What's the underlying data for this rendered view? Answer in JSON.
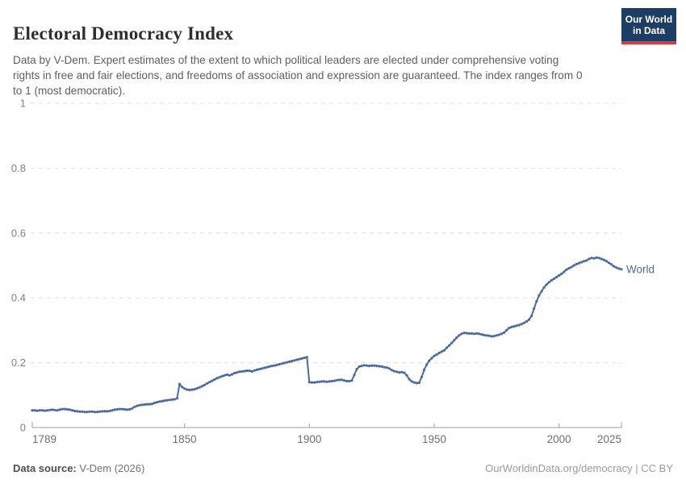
{
  "header": {
    "title": "Electoral Democracy Index",
    "subtitle": "Data by V-Dem. Expert estimates of the extent to which political leaders are elected under comprehensive voting rights in free and fair elections, and freedoms of association and expression are guaranteed. The index ranges from 0 to 1 (most democratic).",
    "logo": {
      "line1": "Our World",
      "line2": "in Data",
      "bg_color": "#1d3d63",
      "accent_color": "#d73c3c"
    }
  },
  "chart_data": {
    "type": "line",
    "title": "Electoral Democracy Index",
    "xlabel": "",
    "ylabel": "",
    "xlim": [
      1789,
      2025
    ],
    "ylim": [
      0,
      1
    ],
    "grid": true,
    "xticks": [
      1789,
      1850,
      1900,
      1950,
      2000,
      2025
    ],
    "xtick_labels": [
      "1789",
      "1850",
      "1900",
      "1950",
      "2000",
      "2025"
    ],
    "yticks": [
      0,
      0.2,
      0.4,
      0.6,
      0.8,
      1
    ],
    "ytick_labels": [
      "0",
      "0.2",
      "0.4",
      "0.6",
      "0.8",
      "1"
    ],
    "legend_position": "end-of-line",
    "series": [
      {
        "name": "World",
        "color": "#4c6a9c",
        "x_start": 1789,
        "x_step": 1,
        "values": [
          0.053,
          0.053,
          0.052,
          0.053,
          0.053,
          0.052,
          0.053,
          0.054,
          0.055,
          0.054,
          0.053,
          0.055,
          0.057,
          0.057,
          0.056,
          0.055,
          0.053,
          0.051,
          0.05,
          0.049,
          0.049,
          0.048,
          0.048,
          0.049,
          0.049,
          0.048,
          0.048,
          0.049,
          0.05,
          0.05,
          0.05,
          0.051,
          0.053,
          0.055,
          0.056,
          0.057,
          0.057,
          0.056,
          0.055,
          0.056,
          0.059,
          0.064,
          0.067,
          0.069,
          0.07,
          0.071,
          0.072,
          0.072,
          0.073,
          0.076,
          0.078,
          0.08,
          0.081,
          0.083,
          0.084,
          0.085,
          0.086,
          0.087,
          0.09,
          0.134,
          0.125,
          0.12,
          0.117,
          0.116,
          0.117,
          0.118,
          0.121,
          0.124,
          0.127,
          0.131,
          0.136,
          0.14,
          0.144,
          0.148,
          0.152,
          0.155,
          0.158,
          0.161,
          0.163,
          0.161,
          0.164,
          0.168,
          0.17,
          0.172,
          0.173,
          0.174,
          0.175,
          0.175,
          0.173,
          0.176,
          0.178,
          0.18,
          0.182,
          0.184,
          0.186,
          0.188,
          0.19,
          0.191,
          0.193,
          0.195,
          0.197,
          0.199,
          0.201,
          0.203,
          0.205,
          0.207,
          0.209,
          0.211,
          0.213,
          0.215,
          0.217,
          0.14,
          0.139,
          0.139,
          0.14,
          0.141,
          0.142,
          0.142,
          0.141,
          0.142,
          0.143,
          0.144,
          0.146,
          0.147,
          0.147,
          0.145,
          0.143,
          0.143,
          0.145,
          0.162,
          0.18,
          0.188,
          0.19,
          0.192,
          0.191,
          0.19,
          0.191,
          0.191,
          0.19,
          0.189,
          0.188,
          0.186,
          0.185,
          0.182,
          0.177,
          0.174,
          0.172,
          0.17,
          0.171,
          0.169,
          0.161,
          0.149,
          0.142,
          0.139,
          0.137,
          0.138,
          0.156,
          0.178,
          0.194,
          0.206,
          0.214,
          0.221,
          0.225,
          0.23,
          0.234,
          0.238,
          0.246,
          0.253,
          0.261,
          0.269,
          0.277,
          0.284,
          0.289,
          0.292,
          0.291,
          0.29,
          0.29,
          0.289,
          0.29,
          0.289,
          0.287,
          0.285,
          0.284,
          0.283,
          0.281,
          0.282,
          0.284,
          0.286,
          0.289,
          0.293,
          0.3,
          0.307,
          0.31,
          0.312,
          0.314,
          0.316,
          0.319,
          0.323,
          0.327,
          0.333,
          0.344,
          0.367,
          0.389,
          0.407,
          0.42,
          0.432,
          0.441,
          0.448,
          0.454,
          0.459,
          0.464,
          0.469,
          0.474,
          0.48,
          0.487,
          0.491,
          0.495,
          0.5,
          0.504,
          0.507,
          0.51,
          0.513,
          0.515,
          0.52,
          0.523,
          0.522,
          0.524,
          0.523,
          0.52,
          0.517,
          0.513,
          0.508,
          0.503,
          0.497,
          0.493,
          0.49,
          0.488
        ]
      }
    ],
    "colors": {
      "gridline": "#dedede",
      "axis": "#9e9e9e",
      "tick_label": "#6e6e6e",
      "ytick_label": "#808080",
      "series_label": "#4c6a9c"
    }
  },
  "footer": {
    "source_label": "Data source:",
    "source_value": " V-Dem (2026)",
    "rights": "OurWorldinData.org/democracy | CC BY"
  }
}
